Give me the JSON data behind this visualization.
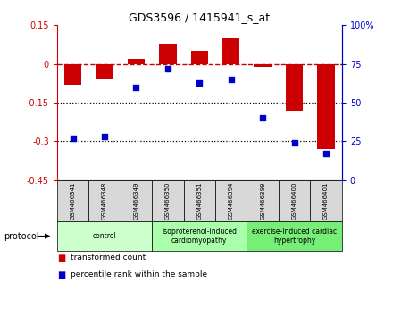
{
  "title": "GDS3596 / 1415941_s_at",
  "samples": [
    "GSM466341",
    "GSM466348",
    "GSM466349",
    "GSM466350",
    "GSM466351",
    "GSM466394",
    "GSM466399",
    "GSM466400",
    "GSM466401"
  ],
  "transformed_count": [
    -0.08,
    -0.06,
    0.02,
    0.08,
    0.05,
    0.1,
    -0.01,
    -0.18,
    -0.33
  ],
  "percentile_rank": [
    27,
    28,
    60,
    72,
    63,
    65,
    40,
    24,
    17
  ],
  "ylim_left": [
    -0.45,
    0.15
  ],
  "ylim_right": [
    0,
    100
  ],
  "yticks_left": [
    0.15,
    0.0,
    -0.15,
    -0.3,
    -0.45
  ],
  "yticks_right": [
    100,
    75,
    50,
    25,
    0
  ],
  "hlines": [
    -0.15,
    -0.3
  ],
  "bar_color": "#cc0000",
  "dot_color": "#0000cc",
  "bg_color": "#ffffff",
  "plot_bg": "#ffffff",
  "groups": [
    {
      "label": "control",
      "start": 0,
      "end": 3,
      "color": "#ccffcc"
    },
    {
      "label": "isoproterenol-induced\ncardiomyopathy",
      "start": 3,
      "end": 6,
      "color": "#aaffaa"
    },
    {
      "label": "exercise-induced cardiac\nhypertrophy",
      "start": 6,
      "end": 9,
      "color": "#77ee77"
    }
  ],
  "legend_items": [
    {
      "label": "transformed count",
      "color": "#cc0000"
    },
    {
      "label": "percentile rank within the sample",
      "color": "#0000cc"
    }
  ],
  "protocol_label": "protocol"
}
